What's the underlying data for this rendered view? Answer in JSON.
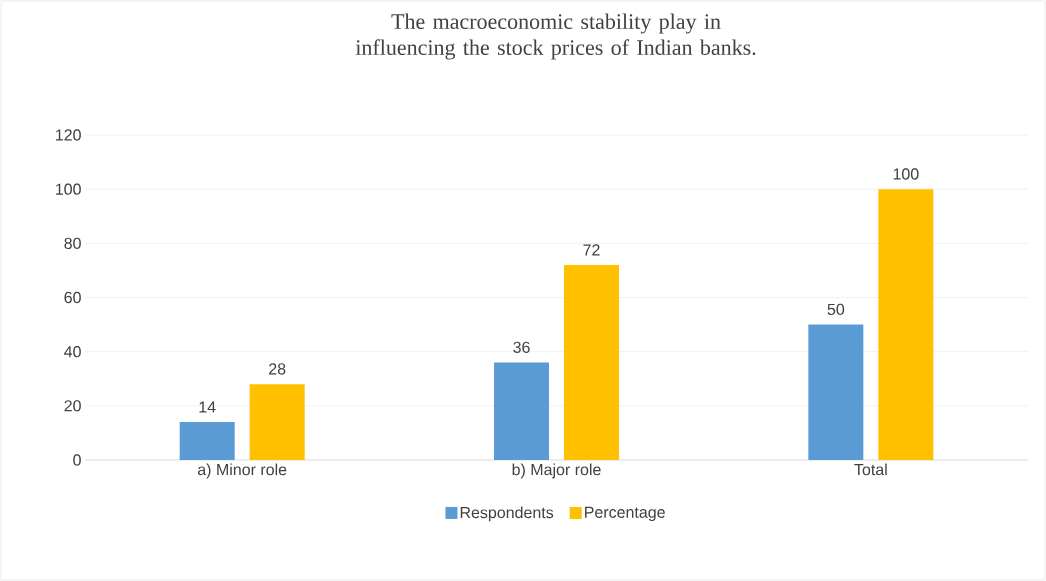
{
  "chart_data": {
    "type": "bar",
    "title": "The macroeconomic stability play in influencing the stock prices of Indian banks.",
    "categories": [
      "a) Minor role",
      "b) Major role",
      "Total"
    ],
    "series": [
      {
        "name": "Respondents",
        "color": "#5b9bd5",
        "values": [
          14,
          36,
          50
        ]
      },
      {
        "name": "Percentage",
        "color": "#ffc000",
        "values": [
          28,
          72,
          100
        ]
      }
    ],
    "ylim": [
      0,
      120
    ],
    "yticks": [
      0,
      20,
      40,
      60,
      80,
      100,
      120
    ],
    "grid": "y",
    "legend": "bottom",
    "data_labels": true
  }
}
